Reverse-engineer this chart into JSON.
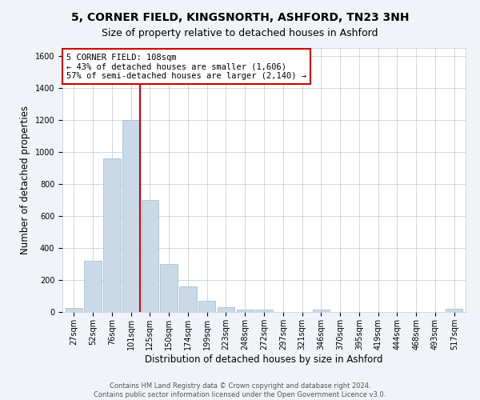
{
  "title": "5, CORNER FIELD, KINGSNORTH, ASHFORD, TN23 3NH",
  "subtitle": "Size of property relative to detached houses in Ashford",
  "xlabel": "Distribution of detached houses by size in Ashford",
  "ylabel": "Number of detached properties",
  "categories": [
    "27sqm",
    "52sqm",
    "76sqm",
    "101sqm",
    "125sqm",
    "150sqm",
    "174sqm",
    "199sqm",
    "223sqm",
    "248sqm",
    "272sqm",
    "297sqm",
    "321sqm",
    "346sqm",
    "370sqm",
    "395sqm",
    "419sqm",
    "444sqm",
    "468sqm",
    "493sqm",
    "517sqm"
  ],
  "values": [
    25,
    320,
    960,
    1200,
    700,
    300,
    160,
    70,
    30,
    15,
    15,
    0,
    0,
    15,
    0,
    0,
    0,
    0,
    0,
    0,
    20
  ],
  "bar_color": "#c9d9e8",
  "bar_edge_color": "#a0b8cc",
  "red_line_x": 3.5,
  "annotation_line1": "5 CORNER FIELD: 108sqm",
  "annotation_line2": "← 43% of detached houses are smaller (1,606)",
  "annotation_line3": "57% of semi-detached houses are larger (2,140) →",
  "annotation_box_color": "#ffffff",
  "annotation_border_color": "#cc0000",
  "ylim": [
    0,
    1650
  ],
  "yticks": [
    0,
    200,
    400,
    600,
    800,
    1000,
    1200,
    1400,
    1600
  ],
  "bg_color": "#f0f4f8",
  "plot_bg_color": "#ffffff",
  "footer_line1": "Contains HM Land Registry data © Crown copyright and database right 2024.",
  "footer_line2": "Contains public sector information licensed under the Open Government Licence v3.0.",
  "title_fontsize": 10,
  "subtitle_fontsize": 9,
  "annotation_fontsize": 7.5,
  "axis_label_fontsize": 8.5,
  "tick_fontsize": 7,
  "footer_fontsize": 6
}
